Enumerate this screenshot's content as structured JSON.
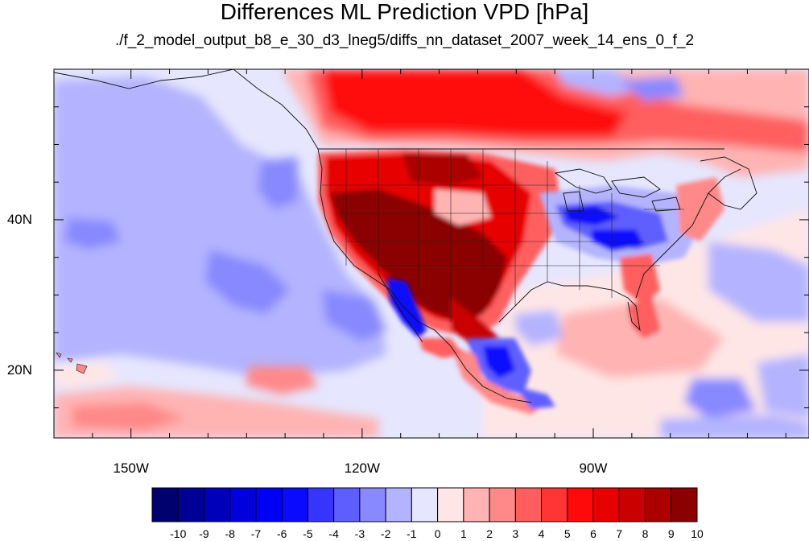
{
  "title": "Differences ML Prediction VPD [hPa]",
  "subtitle": "./f_2_model_output_b8_e_30_d3_lneg5/diffs_nn_dataset_2007_week_14_ens_0_f_2",
  "map": {
    "lon_range": [
      -160,
      -62
    ],
    "lat_range": [
      11,
      60
    ],
    "lat_ticks": [
      {
        "label": "40N",
        "value": 40
      },
      {
        "label": "20N",
        "value": 20
      }
    ],
    "lon_ticks": [
      {
        "label": "150W",
        "value": -150
      },
      {
        "label": "120W",
        "value": -120
      },
      {
        "label": "90W",
        "value": -90
      }
    ]
  },
  "colorbar": {
    "labels": [
      "-10",
      "-9",
      "-8",
      "-7",
      "-6",
      "-5",
      "-4",
      "-3",
      "-2",
      "-1",
      "0",
      "1",
      "2",
      "3",
      "4",
      "5",
      "6",
      "7",
      "8",
      "9",
      "10"
    ],
    "colors": [
      "#00006e",
      "#000096",
      "#0000bb",
      "#0000dc",
      "#0000f5",
      "#0a0aff",
      "#3535ff",
      "#5e5eff",
      "#8888ff",
      "#b3b3ff",
      "#e6e6ff",
      "#ffe6e6",
      "#ffb3b3",
      "#ff8888",
      "#ff5e5e",
      "#ff3535",
      "#ff0a0a",
      "#e60000",
      "#c80000",
      "#aa0000",
      "#8b0000"
    ]
  }
}
